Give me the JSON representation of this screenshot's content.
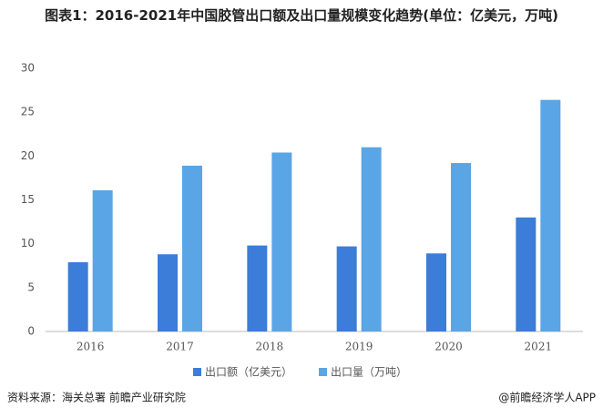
{
  "chart_data": {
    "type": "bar",
    "title": "图表1：2016-2021年中国胶管出口额及出口量规模变化趋势(单位：亿美元，万吨)",
    "categories": [
      "2016",
      "2017",
      "2018",
      "2019",
      "2020",
      "2021"
    ],
    "series": [
      {
        "name": "出口额（亿美元）",
        "color": "#3b7dd8",
        "values": [
          7.9,
          8.8,
          9.8,
          9.7,
          8.9,
          13.0
        ]
      },
      {
        "name": "出口量（万吨）",
        "color": "#5aa5e6",
        "values": [
          16.1,
          18.9,
          20.4,
          21.0,
          19.2,
          26.4
        ]
      }
    ],
    "ylim": [
      0,
      30
    ],
    "yticks": [
      0,
      5,
      10,
      15,
      20,
      25,
      30
    ],
    "grid": false,
    "legend": "bottom",
    "source": "资料来源：海关总署 前瞻产业研究院",
    "credit": "@前瞻经济学人APP"
  }
}
